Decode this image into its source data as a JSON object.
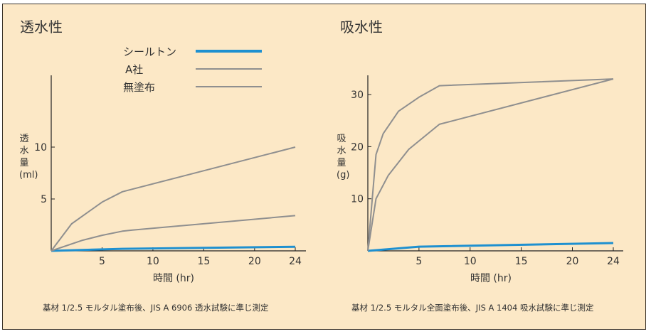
{
  "chart_data": [
    {
      "type": "line",
      "title": "透水性",
      "ylabel": "透水量 (ml)",
      "ylabel_lines": [
        "透",
        "水",
        "量",
        "(ml)"
      ],
      "xlabel": "時間 (hr)",
      "xlim": [
        0,
        24
      ],
      "ylim": [
        0,
        16.5
      ],
      "xticks": [
        5,
        10,
        15,
        20,
        24
      ],
      "yticks": [
        5,
        10
      ],
      "grid": false,
      "legend_position": "top",
      "note": "基材 1/2.5 モルタル塗布後、JIS A 6906 透水試験に準じ測定",
      "series": [
        {
          "name": "シールトン",
          "color": "#1e90d0",
          "x": [
            0,
            7,
            24
          ],
          "y": [
            0,
            0.2,
            0.4
          ]
        },
        {
          "name": "A社",
          "color": "#8f8f8f",
          "x": [
            0,
            3,
            5,
            7,
            8,
            24
          ],
          "y": [
            0,
            1.0,
            1.5,
            1.9,
            2.0,
            3.4
          ]
        },
        {
          "name": "無塗布",
          "color": "#8f8f8f",
          "x": [
            0,
            2,
            5,
            7,
            24
          ],
          "y": [
            0,
            2.6,
            4.7,
            5.7,
            10
          ]
        }
      ]
    },
    {
      "type": "line",
      "title": "吸水性",
      "ylabel": "吸水量 (g)",
      "ylabel_lines": [
        "吸",
        "水",
        "量",
        "(g)"
      ],
      "xlabel": "時間 (hr)",
      "xlim": [
        0,
        24
      ],
      "ylim": [
        0,
        33.5
      ],
      "xticks": [
        5,
        10,
        15,
        20,
        24
      ],
      "yticks": [
        10,
        20,
        30
      ],
      "grid": false,
      "note": "基材 1/2.5 モルタル全面塗布後、JIS A 1404 吸水試験に準じ測定",
      "series": [
        {
          "color": "#1e90d0",
          "x": [
            0,
            5,
            24
          ],
          "y": [
            0,
            0.8,
            1.5
          ]
        },
        {
          "color": "#8f8f8f",
          "x": [
            0,
            0.8,
            1.5,
            3,
            5,
            7,
            24
          ],
          "y": [
            0,
            18.5,
            22.5,
            26.8,
            29.5,
            31.7,
            33
          ]
        },
        {
          "color": "#8f8f8f",
          "x": [
            0,
            0.8,
            2,
            4,
            7,
            24
          ],
          "y": [
            0,
            10,
            14.5,
            19.5,
            24.3,
            33
          ]
        }
      ]
    }
  ]
}
